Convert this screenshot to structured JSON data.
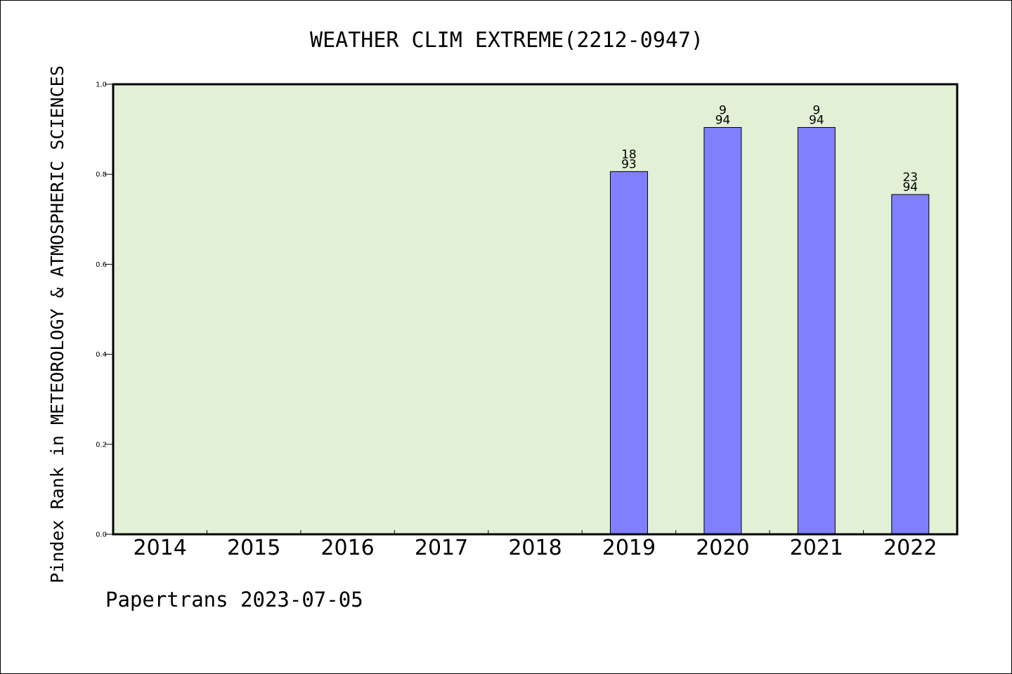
{
  "chart_data": {
    "type": "bar",
    "title": "WEATHER CLIM EXTREME(2212-0947)",
    "ylabel": "Pindex Rank in METEOROLOGY & ATMOSPHERIC SCIENCES",
    "xlabel": "",
    "categories": [
      "2014",
      "2015",
      "2016",
      "2017",
      "2018",
      "2019",
      "2020",
      "2021",
      "2022"
    ],
    "values": [
      null,
      null,
      null,
      null,
      null,
      0.806,
      0.904,
      0.904,
      0.755
    ],
    "bar_labels": [
      null,
      null,
      null,
      null,
      null,
      {
        "rank": "18",
        "total": "93"
      },
      {
        "rank": "9",
        "total": "94"
      },
      {
        "rank": "9",
        "total": "94"
      },
      {
        "rank": "23",
        "total": "94"
      }
    ],
    "ylim": [
      0,
      1.0
    ],
    "yticks": [
      {
        "value": 0.0,
        "label": "0.0"
      },
      {
        "value": 0.2,
        "label": "0.2"
      },
      {
        "value": 0.4,
        "label": "0.4"
      },
      {
        "value": 0.6,
        "label": "0.6"
      },
      {
        "value": 0.8,
        "label": "0.8"
      },
      {
        "value": 1.0,
        "label": "1.0"
      }
    ],
    "grid": false,
    "colors": {
      "plot_background": "#e2f0d6",
      "bar_fill": "#8080ff",
      "bar_stroke": "#000000",
      "axis": "#000000"
    }
  },
  "footer": {
    "text": "Papertrans 2023-07-05"
  }
}
